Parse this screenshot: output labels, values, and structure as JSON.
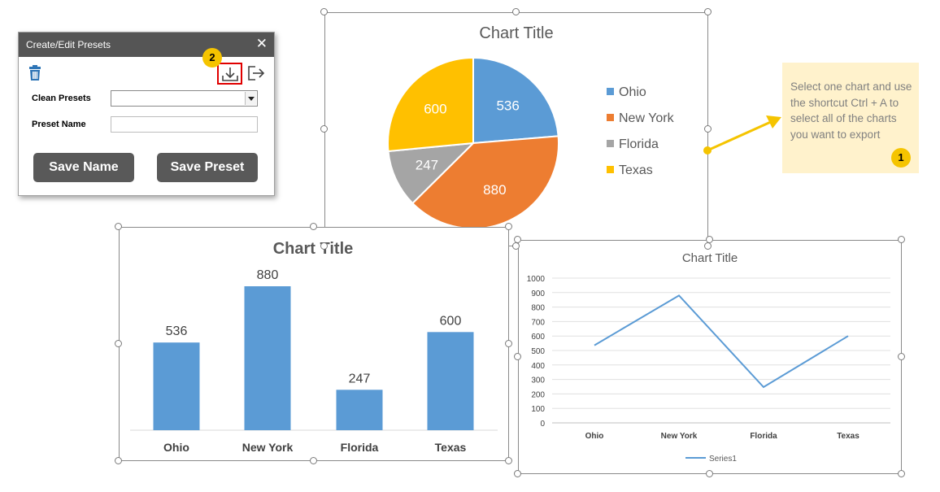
{
  "dialog": {
    "title": "Create/Edit Presets",
    "close_glyph": "✕",
    "icons": [
      "trash-icon",
      "download-icon",
      "export-icon"
    ],
    "clean_presets_label": "Clean Presets",
    "clean_presets_value": "",
    "preset_name_label": "Preset Name",
    "preset_name_value": "",
    "save_name_label": "Save Name",
    "save_preset_label": "Save Preset",
    "badge": "2"
  },
  "note": {
    "text": "Select one chart and use the shortcut Ctrl + A to select all of the charts you want to export",
    "badge": "1"
  },
  "colors": {
    "ohio": "#5b9bd5",
    "new_york": "#ed7d31",
    "florida": "#a5a5a5",
    "texas": "#ffc000",
    "note_bg": "#fff2cc",
    "badge": "#f5c400",
    "highlight": "#e00000"
  },
  "chart_data": [
    {
      "type": "pie",
      "title": "Chart Title",
      "categories": [
        "Ohio",
        "New York",
        "Florida",
        "Texas"
      ],
      "values": [
        536,
        880,
        247,
        600
      ],
      "legend": "right"
    },
    {
      "type": "bar",
      "title": "Chart Title",
      "categories": [
        "Ohio",
        "New York",
        "Florida",
        "Texas"
      ],
      "values": [
        536,
        880,
        247,
        600
      ],
      "data_labels": true,
      "grid": false
    },
    {
      "type": "line",
      "title": "Chart Title",
      "categories": [
        "Ohio",
        "New York",
        "Florida",
        "Texas"
      ],
      "series": [
        {
          "name": "Series1",
          "values": [
            536,
            880,
            247,
            600
          ]
        }
      ],
      "ylim": [
        0,
        1000
      ],
      "yticks": [
        0,
        100,
        200,
        300,
        400,
        500,
        600,
        700,
        800,
        900,
        1000
      ],
      "grid": true,
      "legend": "bottom"
    }
  ]
}
